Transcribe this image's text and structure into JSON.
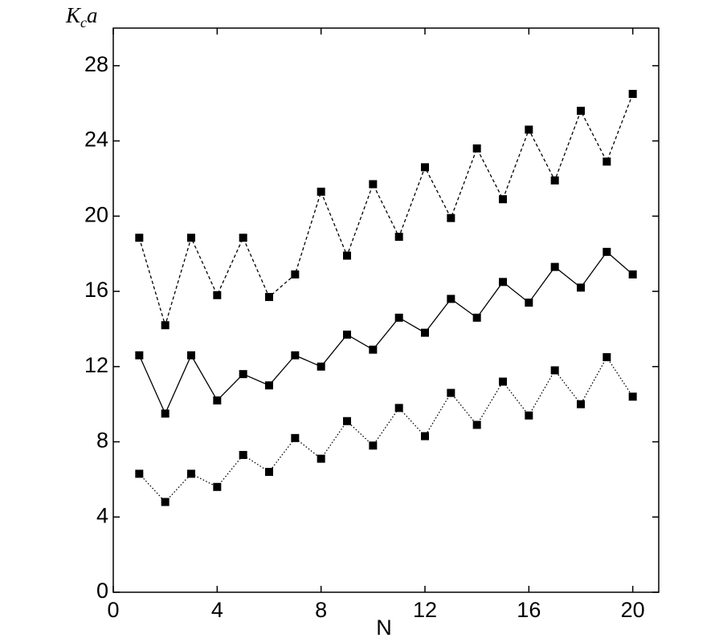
{
  "chart_data": {
    "type": "line",
    "xlabel": "N",
    "ylabel": [
      "K",
      "c",
      "a"
    ],
    "x": [
      1,
      2,
      3,
      4,
      5,
      6,
      7,
      8,
      9,
      10,
      11,
      12,
      13,
      14,
      15,
      16,
      17,
      18,
      19,
      20
    ],
    "series": [
      {
        "color": "#000000",
        "line_style": "dashed",
        "values": [
          18.85,
          14.2,
          18.85,
          15.8,
          18.85,
          15.7,
          16.9,
          21.3,
          17.9,
          21.7,
          18.9,
          22.6,
          19.9,
          23.6,
          20.9,
          24.6,
          21.9,
          25.6,
          22.9,
          26.5
        ]
      },
      {
        "color": "#000000",
        "line_style": "solid",
        "values": [
          12.6,
          9.5,
          12.6,
          10.2,
          11.6,
          11.0,
          12.6,
          12.0,
          13.7,
          12.9,
          14.6,
          13.8,
          15.6,
          14.6,
          16.5,
          15.4,
          17.3,
          16.2,
          18.1,
          16.9
        ]
      },
      {
        "color": "#000000",
        "line_style": "dotted",
        "values": [
          6.3,
          4.8,
          6.3,
          5.6,
          7.3,
          6.4,
          8.2,
          7.1,
          9.1,
          7.8,
          9.8,
          8.3,
          10.6,
          8.9,
          11.2,
          9.4,
          11.8,
          10.0,
          12.5,
          10.4
        ]
      }
    ],
    "xlim": [
      0,
      21
    ],
    "xticks": [
      0,
      4,
      8,
      12,
      16,
      20
    ],
    "ylim": [
      0,
      30
    ],
    "yticks": [
      0,
      4,
      8,
      12,
      16,
      20,
      24,
      28
    ],
    "marker": "square",
    "grid": false
  }
}
